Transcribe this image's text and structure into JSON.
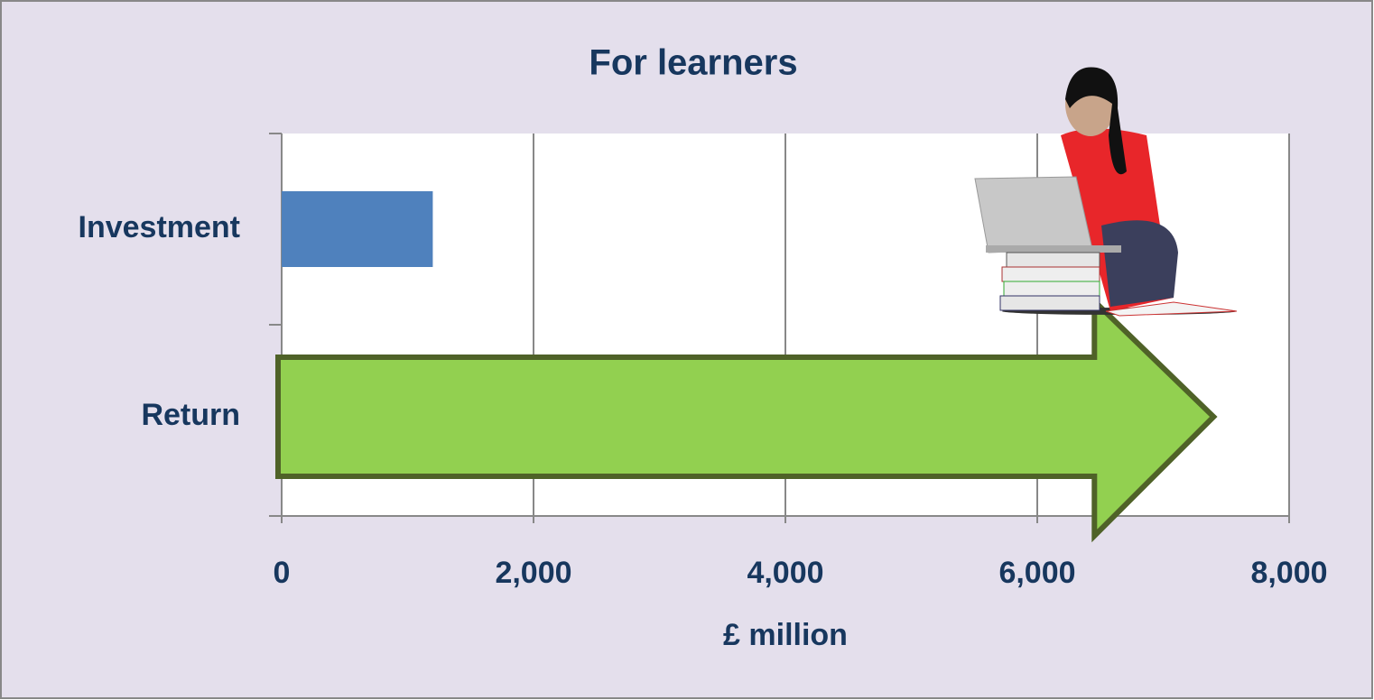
{
  "chart_data": {
    "type": "bar",
    "orientation": "horizontal",
    "title": "For learners",
    "xlabel": "£ million",
    "categories": [
      "Investment",
      "Return"
    ],
    "values": [
      1200,
      7400
    ],
    "colors": [
      "#4f81bd",
      "#92d050"
    ],
    "xlim": [
      0,
      8000
    ],
    "xticks": [
      0,
      {
        "value": 2000,
        "label": "2,000"
      },
      {
        "value": 4000,
        "label": "4,000"
      },
      {
        "value": 6000,
        "label": "6,000"
      },
      {
        "value": 8000,
        "label": "8,000"
      }
    ],
    "grid": true
  }
}
